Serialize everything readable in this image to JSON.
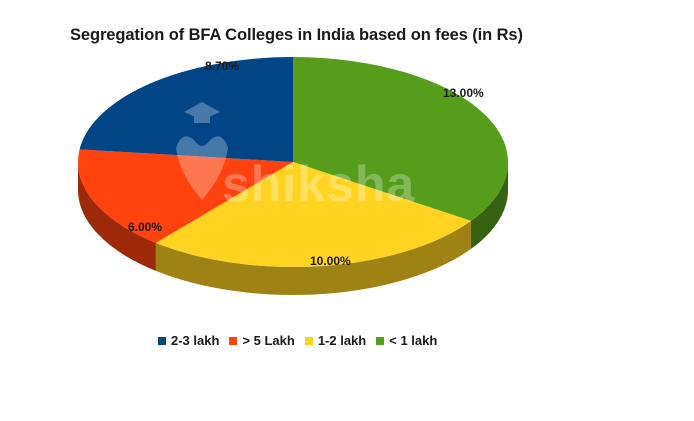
{
  "chart_data": {
    "type": "pie",
    "style": "3d",
    "title": "Segregation of BFA Colleges in India based on fees (in Rs)",
    "categories": [
      "2-3 lakh",
      "> 5 Lakh",
      "1-2 lakh",
      "< 1 lakh"
    ],
    "values": [
      8.7,
      6.0,
      10.0,
      13.0
    ],
    "labels": [
      "8.70%",
      "6.00%",
      "10.00%",
      "13.00%"
    ],
    "colors": [
      "#004586",
      "#ff420e",
      "#ffd320",
      "#579d1c"
    ],
    "legend_position": "bottom"
  },
  "title": "Segregation of BFA Colleges in India based on fees (in Rs)",
  "legend": [
    {
      "label": "2-3 lakh",
      "color": "#004586"
    },
    {
      "label": "> 5 Lakh",
      "color": "#ff420e"
    },
    {
      "label": "1-2 lakh",
      "color": "#ffd320"
    },
    {
      "label": "< 1 lakh",
      "color": "#579d1c"
    }
  ],
  "watermark": "shiksha"
}
